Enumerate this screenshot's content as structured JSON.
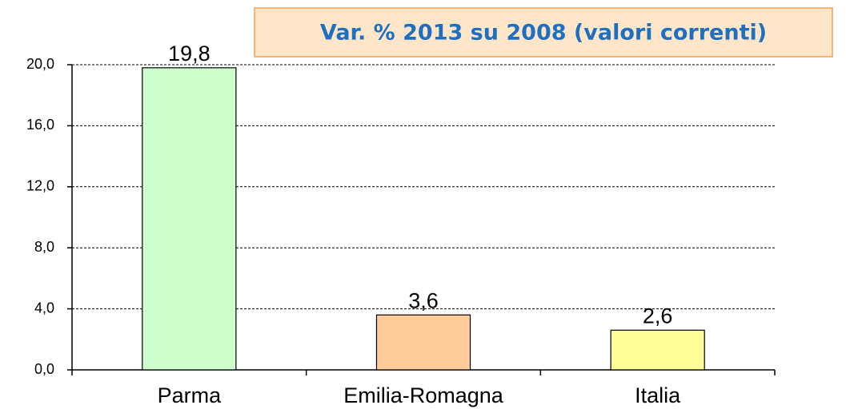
{
  "chart_data": {
    "type": "bar",
    "title": "Var. % 2013 su 2008 (valori correnti)",
    "categories": [
      "Parma",
      "Emilia-Romagna",
      "Italia"
    ],
    "values": [
      19.8,
      3.6,
      2.6
    ],
    "value_labels": [
      "19,8",
      "3,6",
      "2,6"
    ],
    "colors": [
      "#ccffcc",
      "#ffcc99",
      "#ffff99"
    ],
    "ylim": [
      0,
      20
    ],
    "yticks": [
      {
        "value": 0,
        "label": "0,0"
      },
      {
        "value": 4,
        "label": "4,0"
      },
      {
        "value": 8,
        "label": "8,0"
      },
      {
        "value": 12,
        "label": "12,0"
      },
      {
        "value": 16,
        "label": "16,0"
      },
      {
        "value": 20,
        "label": "20,0"
      }
    ],
    "grid": true
  }
}
